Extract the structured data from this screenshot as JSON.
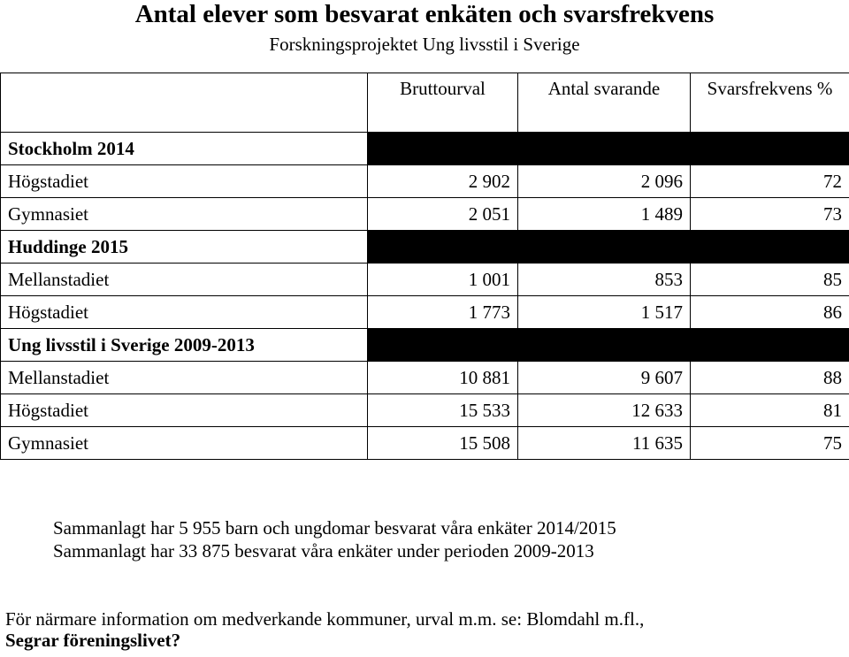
{
  "header": {
    "title": "Antal elever som besvarat enkäten och svarsfrekvens",
    "subtitle": "Forskningsprojektet Ung livsstil i Sverige"
  },
  "table": {
    "columns": [
      "Bruttourval",
      "Antal svarande",
      "Svarsfrekvens %"
    ],
    "sections": [
      {
        "name": "Stockholm 2014",
        "rows": [
          {
            "label": "Högstadiet",
            "bruttourval": "2 902",
            "svarande": "2 096",
            "frekvens": "72"
          },
          {
            "label": "Gymnasiet",
            "bruttourval": "2 051",
            "svarande": "1 489",
            "frekvens": "73"
          }
        ]
      },
      {
        "name": "Huddinge 2015",
        "rows": [
          {
            "label": "Mellanstadiet",
            "bruttourval": "1 001",
            "svarande": "853",
            "frekvens": "85"
          },
          {
            "label": "Högstadiet",
            "bruttourval": "1 773",
            "svarande": "1 517",
            "frekvens": "86"
          }
        ]
      },
      {
        "name": "Ung livsstil i Sverige 2009-2013",
        "rows": [
          {
            "label": "Mellanstadiet",
            "bruttourval": "10 881",
            "svarande": "9 607",
            "frekvens": "88"
          },
          {
            "label": "Högstadiet",
            "bruttourval": "15 533",
            "svarande": "12 633",
            "frekvens": "81"
          },
          {
            "label": "Gymnasiet",
            "bruttourval": "15 508",
            "svarande": "11 635",
            "frekvens": "75"
          }
        ]
      }
    ]
  },
  "notes": [
    "Sammanlagt har 5 955 barn och ungdomar besvarat våra enkäter 2014/2015",
    "Sammanlagt har 33 875 besvarat våra enkäter under perioden 2009-2013"
  ],
  "footer": {
    "text": "För närmare information om medverkande kommuner, urval m.m. se: Blomdahl m.fl.,",
    "bold_text": "Segrar föreningslivet?"
  }
}
